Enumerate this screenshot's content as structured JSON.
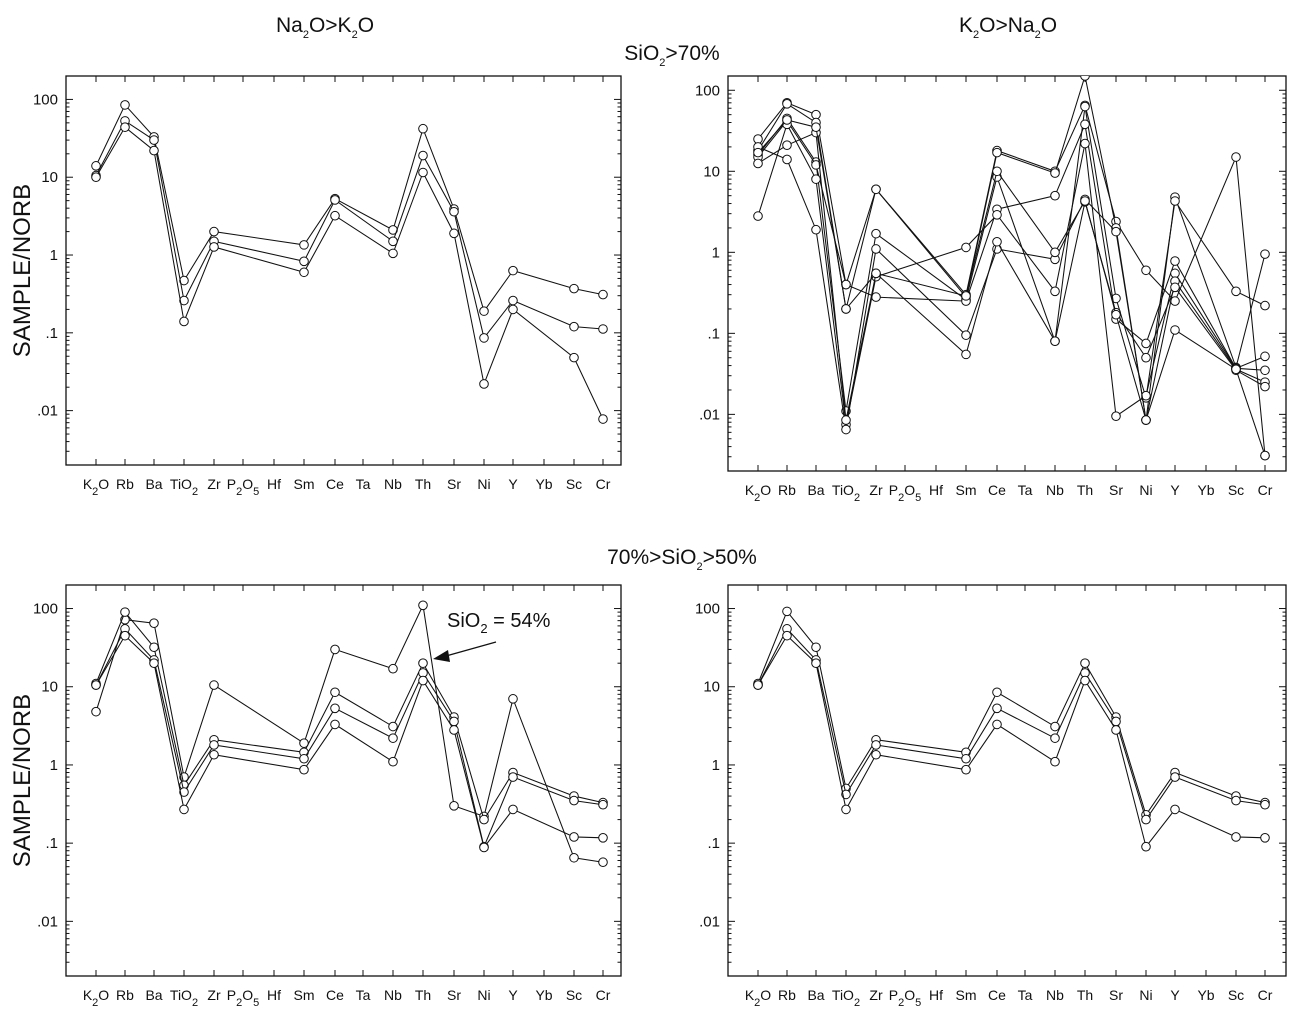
{
  "headers": {
    "col_left": {
      "pre": "Na",
      "sub1": "2",
      "mid": "O>K",
      "sub2": "2",
      "post": "O"
    },
    "col_right": {
      "pre": "K",
      "sub1": "2",
      "mid": "O>Na",
      "sub2": "2",
      "post": "O"
    },
    "row_top": {
      "pre": "SiO",
      "sub": "2",
      "post": ">70%"
    },
    "row_bottom": {
      "pre": "70%>SiO",
      "sub": "2",
      "post": ">50%"
    }
  },
  "chart_data": [
    {
      "type": "line",
      "id": "top-left",
      "ylabel": "SAMPLE/NORB",
      "yscale": "log",
      "ylim": [
        0.002,
        200
      ],
      "yticks": [
        100,
        10,
        1,
        0.1,
        0.01
      ],
      "ytick_labels": [
        "100",
        "10",
        "1",
        ".1",
        ".01"
      ],
      "categories": [
        "K2O",
        "Rb",
        "Ba",
        "TiO2",
        "Zr",
        "P2O5",
        "Hf",
        "Sm",
        "Ce",
        "Ta",
        "Nb",
        "Th",
        "Sr",
        "Ni",
        "Y",
        "Yb",
        "Sc",
        "Cr"
      ],
      "series": [
        {
          "values": [
            14,
            85,
            33,
            0.47,
            2.0,
            null,
            null,
            1.35,
            5.3,
            null,
            2.1,
            42,
            3.9,
            0.19,
            0.63,
            null,
            0.37,
            0.31
          ]
        },
        {
          "values": [
            10.5,
            53,
            30,
            0.26,
            1.5,
            null,
            null,
            0.83,
            5.1,
            null,
            1.5,
            19,
            3.6,
            0.086,
            0.26,
            null,
            0.12,
            0.112
          ]
        },
        {
          "values": [
            10,
            44,
            22,
            0.14,
            1.27,
            null,
            null,
            0.6,
            3.2,
            null,
            1.05,
            11.5,
            1.9,
            0.022,
            0.2,
            null,
            0.048,
            0.0078
          ]
        }
      ]
    },
    {
      "type": "line",
      "id": "top-right",
      "ylabel": "",
      "yscale": "log",
      "ylim": [
        0.002,
        150
      ],
      "yticks": [
        100,
        10,
        1,
        0.1,
        0.01
      ],
      "ytick_labels": [
        "100",
        "10",
        "1",
        ".1",
        ".01"
      ],
      "categories": [
        "K2O",
        "Rb",
        "Ba",
        "TiO2",
        "Zr",
        "P2O5",
        "Hf",
        "Sm",
        "Ce",
        "Ta",
        "Nb",
        "Th",
        "Sr",
        "Ni",
        "Y",
        "Yb",
        "Sc",
        "Cr"
      ],
      "series": [
        {
          "values": [
            25,
            70,
            50,
            0.4,
            6.0,
            null,
            null,
            0.3,
            18,
            null,
            10,
            65,
            2.4,
            0.6,
            0.25,
            null,
            15,
            0.0031
          ]
        },
        {
          "values": [
            18,
            68,
            40,
            0.2,
            6.0,
            null,
            null,
            0.28,
            17,
            null,
            9.5,
            150,
            2.0,
            0.0085,
            4.8,
            null,
            0.038,
            0.95
          ]
        },
        {
          "values": [
            16,
            45,
            13,
            0.011,
            1.7,
            null,
            null,
            0.26,
            8.5,
            null,
            0.08,
            63,
            0.27,
            0.016,
            4.3,
            null,
            0.33,
            0.22
          ]
        },
        {
          "values": [
            15,
            42,
            12,
            0.4,
            0.28,
            null,
            null,
            0.25,
            3.4,
            null,
            5.0,
            38,
            0.15,
            0.075,
            0.78,
            null,
            0.037,
            0.052
          ]
        },
        {
          "values": [
            2.8,
            38,
            8.0,
            0.0075,
            0.5,
            null,
            null,
            1.15,
            2.9,
            null,
            0.33,
            22,
            0.0095,
            0.017,
            0.55,
            null,
            0.037,
            0.035
          ]
        },
        {
          "values": [
            20,
            14,
            1.9,
            0.0065,
            1.1,
            null,
            null,
            0.095,
            1.1,
            null,
            0.82,
            4.5,
            1.8,
            0.0085,
            0.44,
            null,
            0.036,
            0.025
          ]
        },
        {
          "values": [
            12.5,
            21,
            30,
            0.0085,
            0.55,
            null,
            null,
            0.055,
            1.35,
            null,
            0.08,
            4.2,
            0.18,
            0.05,
            0.37,
            null,
            0.035,
            0.022
          ]
        },
        {
          "values": [
            17,
            43,
            35,
            0.2,
            0.55,
            null,
            null,
            0.29,
            10,
            null,
            1.0,
            4.3,
            0.17,
            0.0085,
            0.11,
            null,
            0.036,
            0.0031
          ]
        }
      ]
    },
    {
      "type": "line",
      "id": "bottom-left",
      "ylabel": "SAMPLE/NORB",
      "yscale": "log",
      "ylim": [
        0.002,
        200
      ],
      "yticks": [
        100,
        10,
        1,
        0.1,
        0.01
      ],
      "ytick_labels": [
        "100",
        "10",
        "1",
        ".1",
        ".01"
      ],
      "categories": [
        "K2O",
        "Rb",
        "Ba",
        "TiO2",
        "Zr",
        "P2O5",
        "Hf",
        "Sm",
        "Ce",
        "Ta",
        "Nb",
        "Th",
        "Sr",
        "Ni",
        "Y",
        "Yb",
        "Sc",
        "Cr"
      ],
      "annotation": {
        "pre": "SiO",
        "sub": "2",
        "post": " = 54%"
      },
      "series": [
        {
          "values": [
            4.8,
            72,
            65,
            0.7,
            10.5,
            null,
            null,
            1.9,
            30,
            null,
            17,
            110,
            0.3,
            0.22,
            7.0,
            null,
            0.065,
            0.057
          ]
        },
        {
          "values": [
            11,
            90,
            32,
            0.55,
            2.1,
            null,
            null,
            1.45,
            8.5,
            null,
            3.1,
            20,
            4.1,
            0.2,
            0.8,
            null,
            0.4,
            0.33
          ]
        },
        {
          "values": [
            10.5,
            55,
            22,
            0.45,
            1.8,
            null,
            null,
            1.2,
            5.3,
            null,
            2.2,
            15,
            3.6,
            0.09,
            0.7,
            null,
            0.35,
            0.31
          ]
        },
        {
          "values": [
            10.5,
            45,
            20,
            0.27,
            1.35,
            null,
            null,
            0.87,
            3.3,
            null,
            1.1,
            12,
            2.8,
            0.088,
            0.27,
            null,
            0.12,
            0.117
          ]
        }
      ]
    },
    {
      "type": "line",
      "id": "bottom-right",
      "ylabel": "",
      "yscale": "log",
      "ylim": [
        0.002,
        200
      ],
      "yticks": [
        100,
        10,
        1,
        0.1,
        0.01
      ],
      "ytick_labels": [
        "100",
        "10",
        "1",
        ".1",
        ".01"
      ],
      "categories": [
        "K2O",
        "Rb",
        "Ba",
        "TiO2",
        "Zr",
        "P2O5",
        "Hf",
        "Sm",
        "Ce",
        "Ta",
        "Nb",
        "Th",
        "Sr",
        "Ni",
        "Y",
        "Yb",
        "Sc",
        "Cr"
      ],
      "series": [
        {
          "values": [
            11,
            92,
            32,
            0.5,
            2.1,
            null,
            null,
            1.45,
            8.5,
            null,
            3.1,
            20,
            4.1,
            0.23,
            0.8,
            null,
            0.4,
            0.33
          ]
        },
        {
          "values": [
            10.5,
            55,
            22,
            0.42,
            1.8,
            null,
            null,
            1.2,
            5.3,
            null,
            2.2,
            15,
            3.6,
            0.2,
            0.7,
            null,
            0.35,
            0.31
          ]
        },
        {
          "values": [
            10.5,
            45,
            20,
            0.27,
            1.35,
            null,
            null,
            0.87,
            3.3,
            null,
            1.1,
            12,
            2.8,
            0.09,
            0.27,
            null,
            0.12,
            0.117
          ]
        }
      ]
    }
  ]
}
